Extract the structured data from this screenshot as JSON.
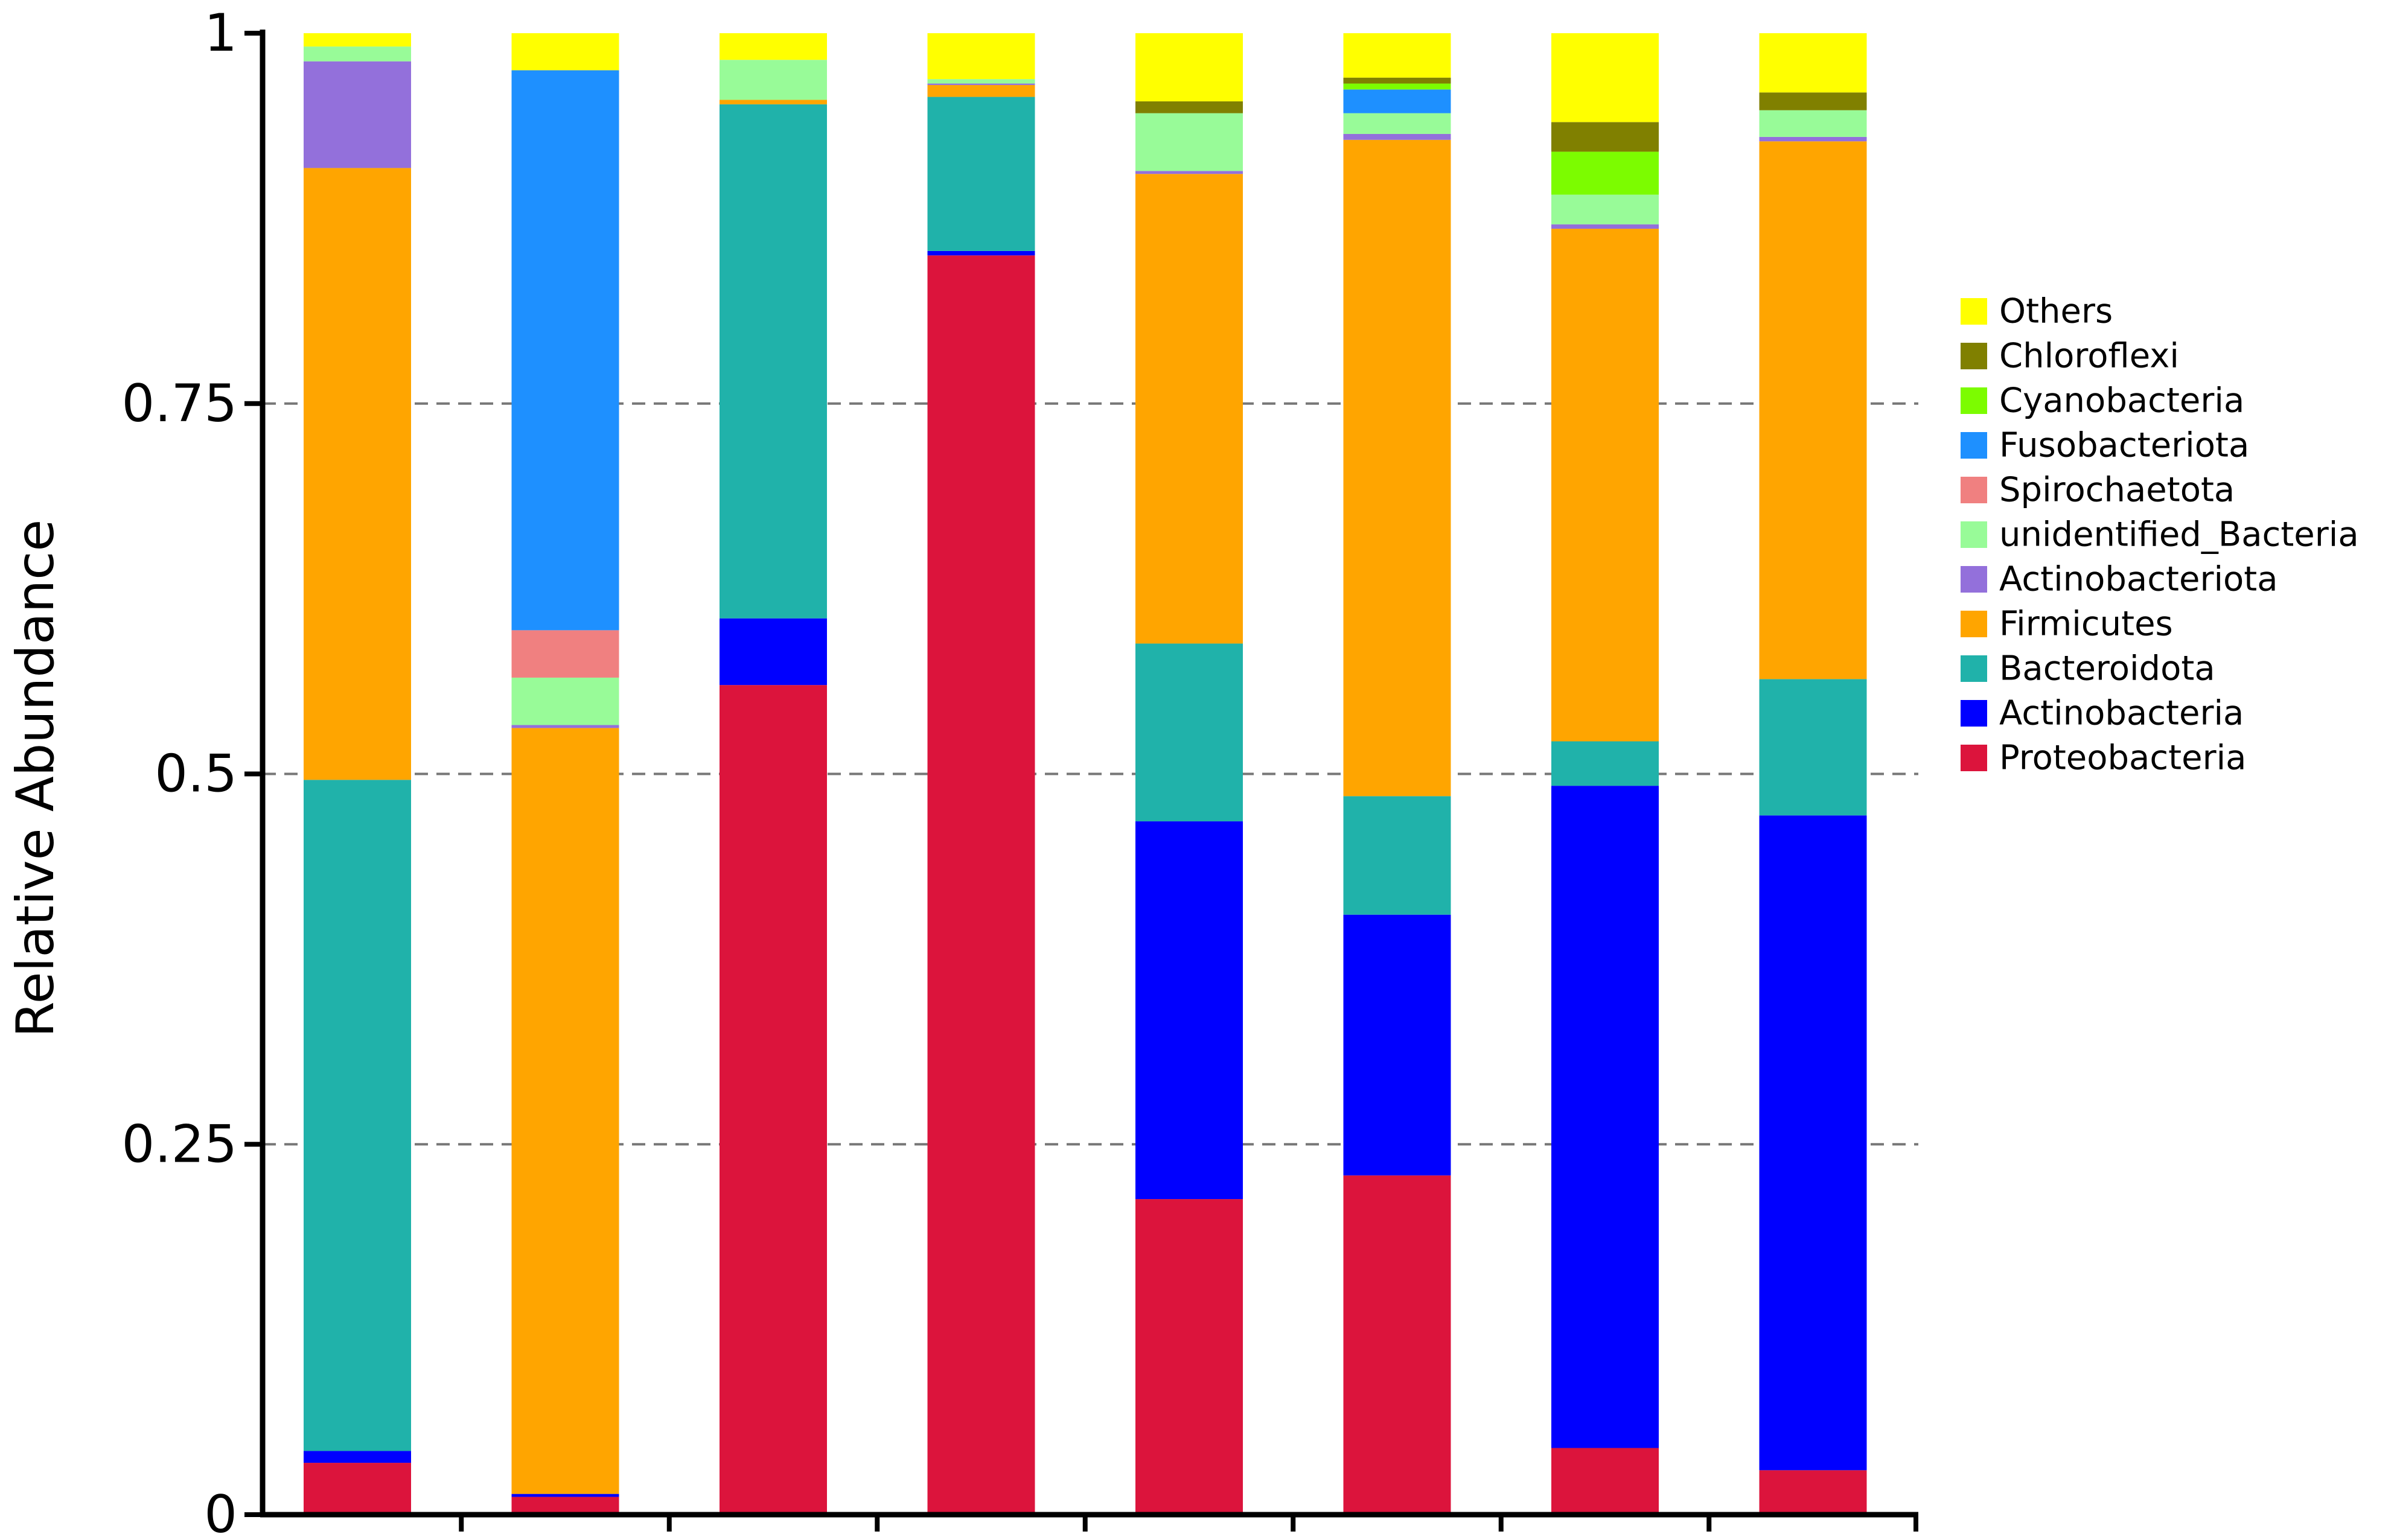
{
  "chart_data": {
    "type": "bar",
    "stacked": true,
    "title": "",
    "xlabel": "",
    "ylabel": "Relative Abundance",
    "ylim": [
      0,
      1
    ],
    "yticks": [
      {
        "value": 0,
        "label": "0"
      },
      {
        "value": 0.25,
        "label": "0.25"
      },
      {
        "value": 0.5,
        "label": "0.5"
      },
      {
        "value": 0.75,
        "label": "0.75"
      },
      {
        "value": 1,
        "label": "1"
      }
    ],
    "gridlines": "dashed, at 0.25 / 0.5 / 0.75",
    "legend_position": "right",
    "categories": [
      "",
      "",
      "",
      "",
      "",
      "",
      "",
      ""
    ],
    "series": [
      {
        "name": "Proteobacteria",
        "color": "#DC143C",
        "values": [
          0.035,
          0.012,
          0.56,
          0.85,
          0.213,
          0.229,
          0.045,
          0.03
        ]
      },
      {
        "name": "Actinobacteria",
        "color": "#0000FF",
        "values": [
          0.008,
          0.002,
          0.045,
          0.003,
          0.255,
          0.176,
          0.447,
          0.442
        ]
      },
      {
        "name": "Bacteroidota",
        "color": "#20B2AA",
        "values": [
          0.453,
          0.0,
          0.347,
          0.104,
          0.12,
          0.08,
          0.03,
          0.092
        ]
      },
      {
        "name": "Firmicutes",
        "color": "#FFA500",
        "values": [
          0.413,
          0.517,
          0.003,
          0.008,
          0.317,
          0.443,
          0.346,
          0.363
        ]
      },
      {
        "name": "Actinobacteriota",
        "color": "#9370DB",
        "values": [
          0.072,
          0.002,
          0.0,
          0.001,
          0.002,
          0.004,
          0.003,
          0.003
        ]
      },
      {
        "name": "unidentified_Bacteria",
        "color": "#98FB98",
        "values": [
          0.01,
          0.032,
          0.027,
          0.003,
          0.039,
          0.014,
          0.02,
          0.018
        ]
      },
      {
        "name": "Spirochaetota",
        "color": "#F08080",
        "values": [
          0.0,
          0.032,
          0.0,
          0.0,
          0.0,
          0.0,
          0.0,
          0.0
        ]
      },
      {
        "name": "Fusobacteriota",
        "color": "#1E90FF",
        "values": [
          0.0,
          0.378,
          0.0,
          0.0,
          0.0,
          0.016,
          0.0,
          0.0
        ]
      },
      {
        "name": "Cyanobacteria",
        "color": "#7CFC00",
        "values": [
          0.0,
          0.0,
          0.0,
          0.0,
          0.0,
          0.004,
          0.029,
          0.0
        ]
      },
      {
        "name": "Chloroflexi",
        "color": "#808000",
        "values": [
          0.0,
          0.0,
          0.0,
          0.0,
          0.008,
          0.004,
          0.02,
          0.012
        ]
      },
      {
        "name": "Others",
        "color": "#FFFF00",
        "values": [
          0.009,
          0.025,
          0.018,
          0.031,
          0.046,
          0.03,
          0.06,
          0.04
        ]
      }
    ]
  }
}
